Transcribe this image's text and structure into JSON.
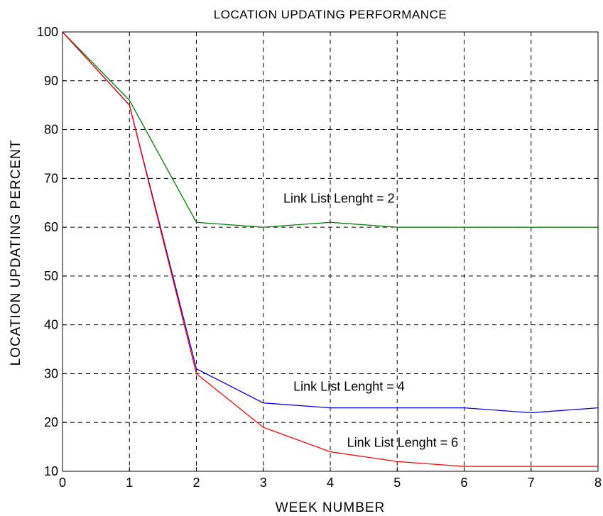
{
  "chart_data": {
    "type": "line",
    "title": "LOCATION  UPDATING  PERFORMANCE",
    "xlabel": "WEEK  NUMBER",
    "ylabel": "LOCATION  UPDATING  PERCENT",
    "xlim": [
      0,
      8
    ],
    "ylim": [
      10,
      100
    ],
    "xticks": [
      0,
      1,
      2,
      3,
      4,
      5,
      6,
      7,
      8
    ],
    "yticks": [
      10,
      20,
      30,
      40,
      50,
      60,
      70,
      80,
      90,
      100
    ],
    "grid": true,
    "x": [
      0,
      1,
      2,
      3,
      4,
      5,
      6,
      7,
      8
    ],
    "series": [
      {
        "name": "Link List Lenght = 2",
        "color": "#008000",
        "values": [
          100,
          86,
          61,
          60,
          61,
          60,
          60,
          60,
          60
        ]
      },
      {
        "name": "Link List Lenght = 4",
        "color": "#0000ff",
        "values": [
          100,
          85,
          31,
          24,
          23,
          23,
          23,
          22,
          23
        ]
      },
      {
        "name": "Link List Lenght = 6",
        "color": "#ff0000",
        "values": [
          100,
          85,
          30,
          19,
          14,
          12,
          11,
          11,
          11
        ]
      }
    ],
    "annotations": [
      {
        "text": "Link List Lenght = 2",
        "x": 3.3,
        "y": 65
      },
      {
        "text": "Link List Lenght = 4",
        "x": 3.45,
        "y": 26.5
      },
      {
        "text": "Link List Lenght = 6",
        "x": 4.25,
        "y": 15
      }
    ]
  }
}
